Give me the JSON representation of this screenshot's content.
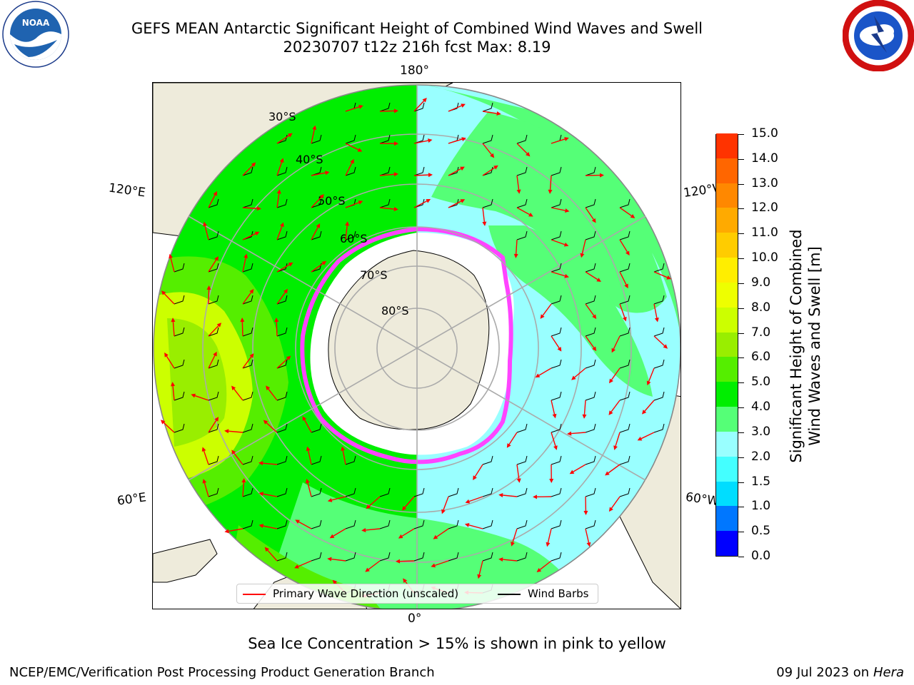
{
  "title": {
    "line1": "GEFS MEAN Antarctic Significant Height of Combined Wind Waves and Swell",
    "line2": "20230707 t12z 216h fcst   Max: 8.19"
  },
  "logos": {
    "left": {
      "name": "noaa-logo",
      "text": "NOAA",
      "ring_text": "NATIONAL OCEANIC AND ATMOSPHERIC ADMINISTRATION · U.S. DEPARTMENT OF COMMERCE"
    },
    "right": {
      "name": "nws-logo",
      "ring_text": "NATIONAL WEATHER SERVICE"
    }
  },
  "map": {
    "projection": "south-polar-stereographic",
    "lon_labels": {
      "top": "180°",
      "bottom": "0°",
      "upper_left": "120°E",
      "upper_right": "120°W",
      "lower_left": "60°E",
      "lower_right": "60°W"
    },
    "lat_labels": [
      "30°S",
      "40°S",
      "50°S",
      "60°S",
      "70°S",
      "80°S"
    ]
  },
  "colorbar": {
    "label": "Significant Height of Combined Wind Waves and Swell [m]",
    "label_line1": "Significant Height of Combined",
    "label_line2": "Wind Waves and Swell [m]",
    "ticks": [
      "0.0",
      "0.5",
      "1.0",
      "1.5",
      "2.0",
      "3.0",
      "4.0",
      "5.0",
      "6.0",
      "7.0",
      "8.0",
      "9.0",
      "10.0",
      "11.0",
      "12.0",
      "13.0",
      "14.0",
      "15.0"
    ],
    "colors": [
      "#0000ff",
      "#0077ff",
      "#00ddff",
      "#44ffff",
      "#99ffff",
      "#55ff77",
      "#00ee00",
      "#55ee00",
      "#99ee00",
      "#ccff00",
      "#eeff00",
      "#ffee00",
      "#ffcc00",
      "#ffaa00",
      "#ff8800",
      "#ff6600",
      "#ff3300"
    ],
    "extra_top_color": "#ff0000"
  },
  "legend": {
    "wave": "Primary Wave Direction (unscaled)",
    "barb": "Wind Barbs",
    "wave_color": "#ff0000",
    "barb_color": "#000000"
  },
  "ice_note": "Sea Ice Concentration > 15% is shown in pink to yellow",
  "footer": {
    "left": "NCEP/EMC/Verification Post Processing Product Generation Branch",
    "right_date": "09 Jul 2023 on ",
    "right_host": "Hera"
  }
}
